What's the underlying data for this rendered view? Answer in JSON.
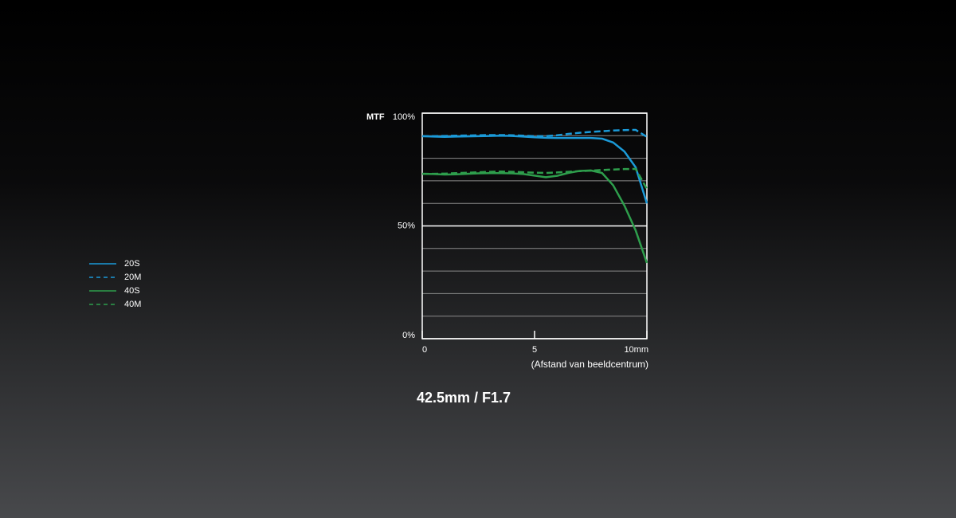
{
  "chart_data": {
    "type": "line",
    "title": "42.5mm / F1.7",
    "ylabel": "MTF",
    "xlabel": "(Afstand van beeldcentrum)",
    "x": [
      0,
      0.5,
      1,
      1.5,
      2,
      2.5,
      3,
      3.5,
      4,
      4.5,
      5,
      5.5,
      6,
      6.5,
      7,
      7.5,
      8,
      8.5,
      9,
      9.5,
      10
    ],
    "series": [
      {
        "name": "20S",
        "color": "#1b9ad8",
        "dash": false,
        "values": [
          89.8,
          89.6,
          89.5,
          89.6,
          89.7,
          89.8,
          89.9,
          90,
          89.9,
          89.6,
          89.3,
          89.1,
          89,
          89,
          89,
          89,
          88.7,
          87,
          83,
          76,
          60
        ]
      },
      {
        "name": "20M",
        "color": "#1b9ad8",
        "dash": true,
        "values": [
          89.8,
          89.8,
          89.9,
          90,
          90.1,
          90.2,
          90.3,
          90.3,
          90.2,
          90,
          89.8,
          89.8,
          90.2,
          90.8,
          91.3,
          91.7,
          92,
          92.3,
          92.5,
          92.6,
          89.5
        ]
      },
      {
        "name": "40S",
        "color": "#2e9e4c",
        "dash": false,
        "values": [
          73.1,
          73,
          72.8,
          72.9,
          73.1,
          73.3,
          73.4,
          73.4,
          73.3,
          73,
          72.3,
          71.6,
          72.2,
          73.5,
          74.4,
          74.6,
          73.5,
          68,
          59,
          48,
          33.6
        ]
      },
      {
        "name": "40M",
        "color": "#2e9e4c",
        "dash": true,
        "values": [
          73.1,
          73.1,
          73.2,
          73.4,
          73.6,
          73.8,
          74,
          74.1,
          74,
          73.8,
          73.6,
          73.5,
          73.7,
          74,
          74.3,
          74.5,
          74.8,
          75,
          75.2,
          75.3,
          66.4
        ]
      }
    ],
    "xlim": [
      0,
      10
    ],
    "xticks": [
      0,
      5,
      {
        "value": 10,
        "label": "10mm"
      }
    ],
    "ylim": [
      0,
      100
    ],
    "yticks": [
      {
        "value": 0,
        "label": "0%"
      },
      {
        "value": 50,
        "label": "50%"
      },
      {
        "value": 100,
        "label": "100%"
      }
    ],
    "minor_yticks": [
      10,
      20,
      30,
      40,
      60,
      70,
      80,
      90
    ],
    "grid": true,
    "legend": "left"
  }
}
